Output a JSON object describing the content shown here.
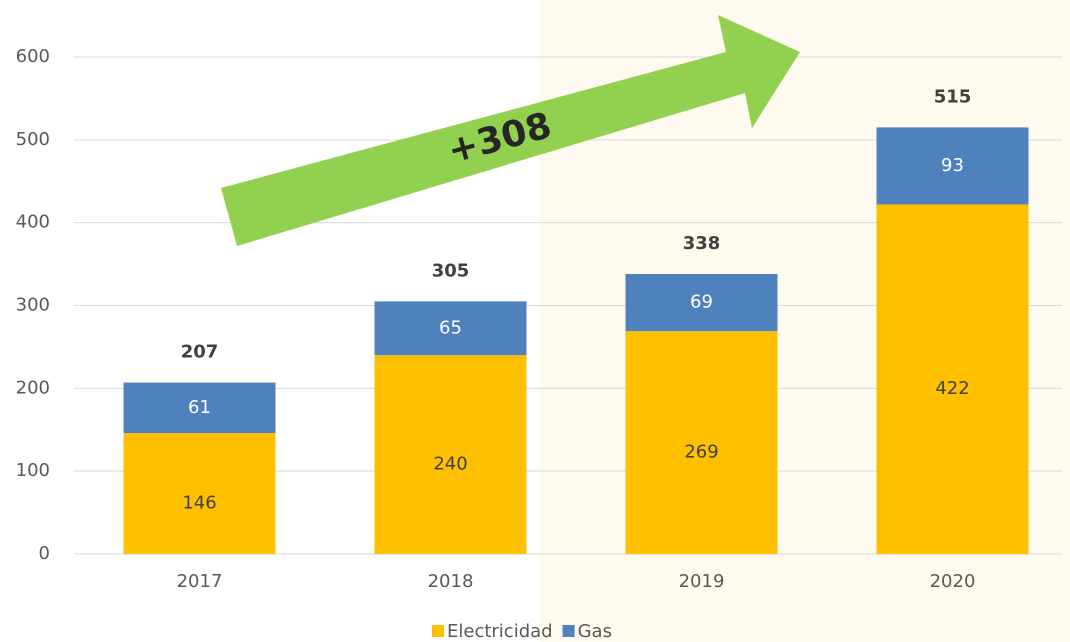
{
  "chart_data": {
    "type": "stacked_bar",
    "categories": [
      "2017",
      "2018",
      "2019",
      "2020"
    ],
    "series": [
      {
        "name": "Electricidad",
        "color": "#ffc000",
        "values": [
          146,
          240,
          269,
          422
        ]
      },
      {
        "name": "Gas",
        "color": "#4f81bd",
        "values": [
          61,
          65,
          69,
          93
        ]
      }
    ],
    "totals": [
      207,
      305,
      338,
      515
    ],
    "annotation": "+308",
    "ylim": [
      0,
      600
    ],
    "yticks": [
      0,
      100,
      200,
      300,
      400,
      500,
      600
    ],
    "grid": true,
    "legend": "bottom"
  }
}
